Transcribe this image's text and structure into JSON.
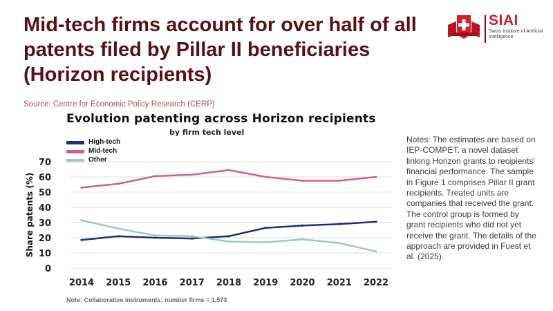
{
  "headline": "Mid-tech firms account for over half of all patents filed by Pillar II beneficiaries (Horizon recipients)",
  "source": "Source: Centre for Economic Policy Research (CERP)",
  "logo": {
    "name": "SIAI",
    "subtitle": "Swiss Institute of Artificial Intelligence",
    "icon": "swiss-cross-emblem"
  },
  "colors": {
    "headline": "#5a0f16",
    "high_tech": "#1f2f70",
    "mid_tech": "#cf5f93",
    "other": "#98cdb7",
    "grid": "#dcdcdc"
  },
  "chart_data": {
    "type": "line",
    "title": "Evolution patenting across Horizon recipients",
    "subtitle": "by firm tech level",
    "xlabel": "",
    "ylabel": "Share patents (%)",
    "x": [
      2014,
      2015,
      2016,
      2017,
      2018,
      2019,
      2020,
      2021,
      2022
    ],
    "ylim": [
      0,
      70
    ],
    "yticks": [
      0,
      10,
      20,
      30,
      40,
      50,
      60,
      70
    ],
    "grid": true,
    "legend_position": "top-left",
    "series": [
      {
        "name": "High-tech",
        "color": "#1f2f70",
        "values": [
          18.5,
          21,
          20,
          19.5,
          21,
          26.5,
          28,
          29,
          30.5
        ]
      },
      {
        "name": "Mid-tech",
        "color": "#cf5f93",
        "values": [
          53,
          55.5,
          60.5,
          61.5,
          64.5,
          60,
          57.5,
          57.5,
          60
        ]
      },
      {
        "name": "Other",
        "color": "#98cdb7",
        "values": [
          31.5,
          26,
          21.5,
          21,
          17.5,
          17,
          19,
          16.5,
          11
        ]
      }
    ],
    "note": "Note: Collaborative instruments; number firms = 1,573"
  },
  "notes": "Notes: The estimates are based on IEP-COMPET, a novel dataset linking Horizon grants to recipients' financial performance. The sample in Figure 1 comprises Pillar II grant recipients. Treated units are companies that received the grant. The control group is formed by grant recipients who did not yet receive the grant. The details of the approach are provided in Fuest et al. (2025)."
}
